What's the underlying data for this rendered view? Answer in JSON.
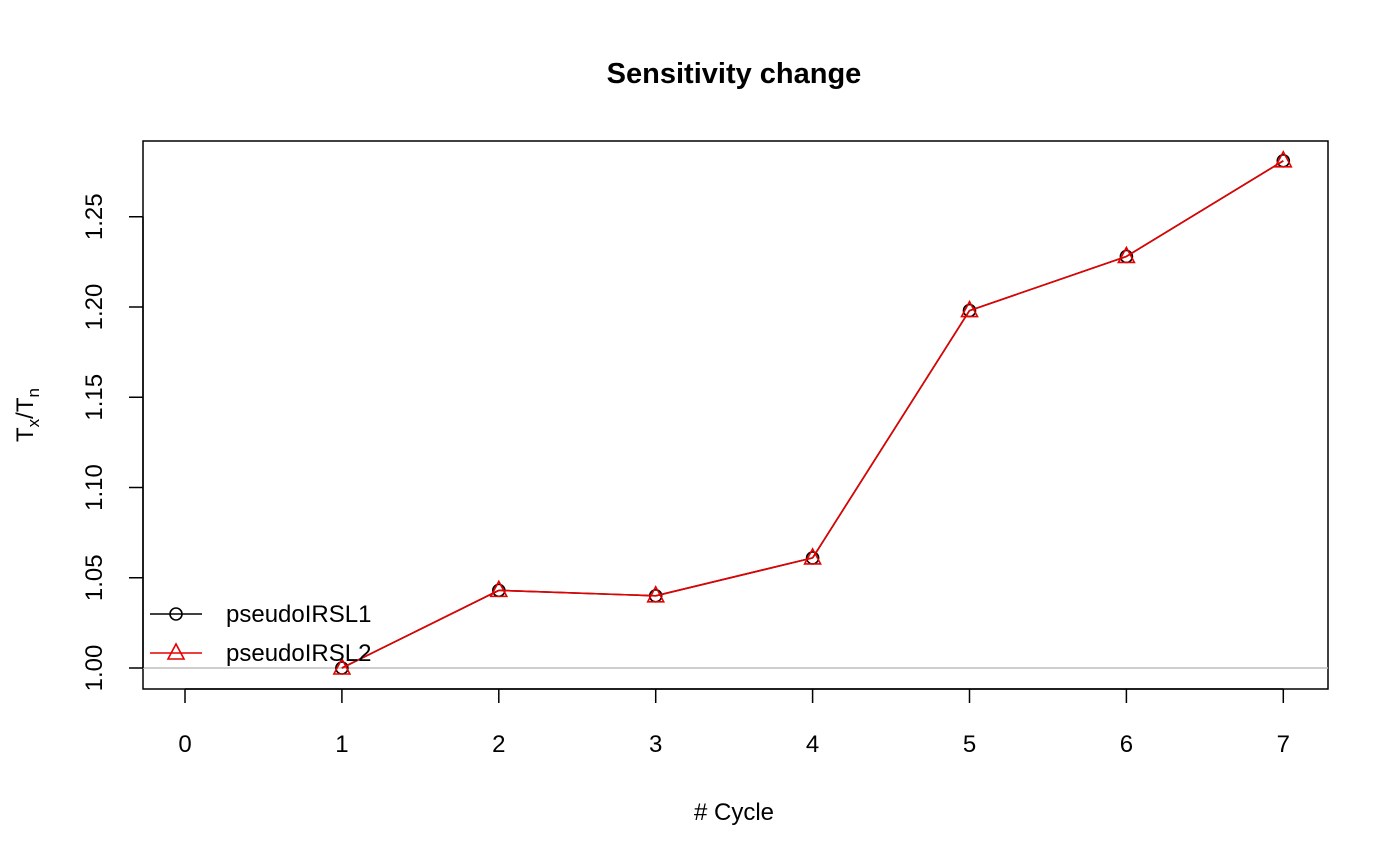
{
  "chart_data": {
    "type": "line",
    "title": "Sensitivity change",
    "xlabel": "# Cycle",
    "ylabel": {
      "main_1": "T",
      "sub_1": "x",
      "separator": "/",
      "main_2": "T",
      "sub_2": "n"
    },
    "xlim": [
      0,
      7
    ],
    "ylim": [
      1.0,
      1.28
    ],
    "x_ticks": [
      0,
      1,
      2,
      3,
      4,
      5,
      6,
      7
    ],
    "x_tick_labels": [
      "0",
      "1",
      "2",
      "3",
      "4",
      "5",
      "6",
      "7"
    ],
    "y_ticks": [
      1.0,
      1.05,
      1.1,
      1.15,
      1.2,
      1.25
    ],
    "y_tick_labels": [
      "1.00",
      "1.05",
      "1.10",
      "1.15",
      "1.20",
      "1.25"
    ],
    "reference_line": {
      "y": 1.0,
      "color": "#bebebe"
    },
    "grid": false,
    "legend": {
      "placement": "bottom-left",
      "entries": [
        "pseudoIRSL1",
        "pseudoIRSL2"
      ]
    },
    "x": [
      1,
      2,
      3,
      4,
      5,
      6,
      7
    ],
    "series": [
      {
        "name": "pseudoIRSL1",
        "values": [
          1.0,
          1.043,
          1.04,
          1.061,
          1.198,
          1.228,
          1.281
        ],
        "color": "#000000",
        "marker": "circle"
      },
      {
        "name": "pseudoIRSL2",
        "values": [
          1.0,
          1.043,
          1.04,
          1.061,
          1.198,
          1.228,
          1.281
        ],
        "color": "#e60000",
        "marker": "triangle"
      }
    ]
  }
}
